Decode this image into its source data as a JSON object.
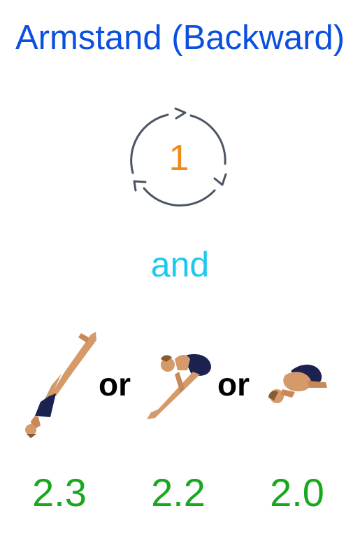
{
  "title": "Armstand (Backward)",
  "rotation": {
    "count": "1",
    "icon": "rotation-cycle-icon"
  },
  "conjunction": "and",
  "positions": [
    {
      "icon": "straight-position-diver-icon",
      "dd": "2.3"
    },
    {
      "icon": "pike-position-diver-icon",
      "dd": "2.2"
    },
    {
      "icon": "tuck-position-diver-icon",
      "dd": "2.0"
    }
  ],
  "separators": [
    "or",
    "or"
  ],
  "colors": {
    "title": "#0b4fe0",
    "rotation_count": "#f08a18",
    "conjunction": "#1ec8ee",
    "degree_of_difficulty": "#17a81e",
    "icon_stroke": "#4a5562"
  }
}
